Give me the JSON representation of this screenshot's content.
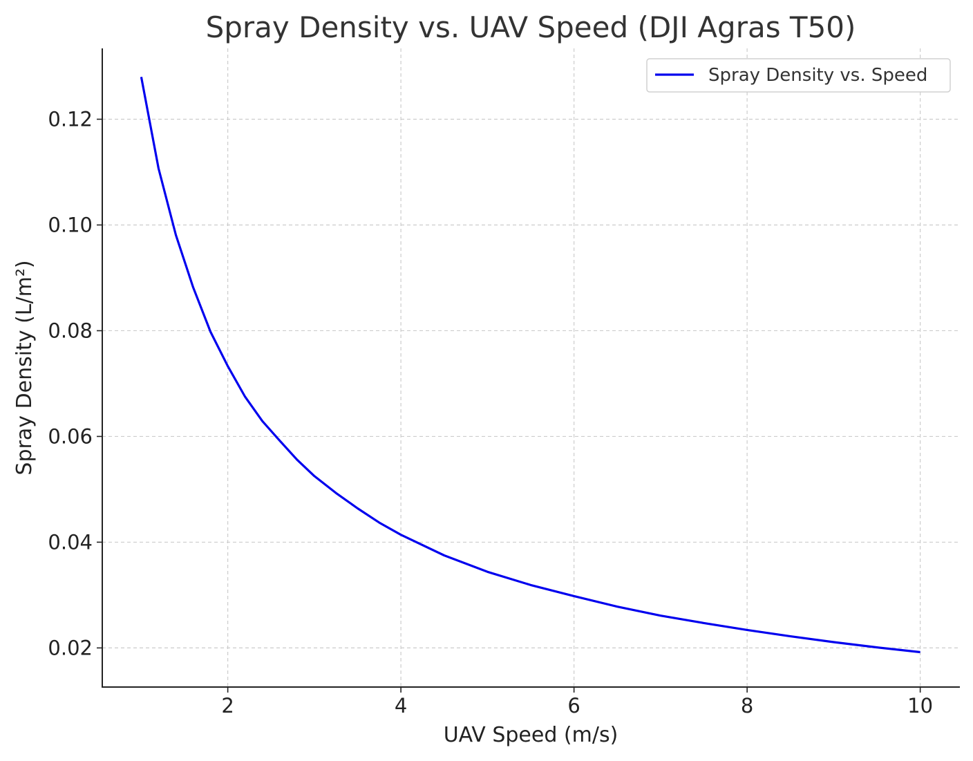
{
  "chart_data": {
    "type": "line",
    "title": "Spray Density vs. UAV Speed (DJI Agras T50)",
    "xlabel": "UAV Speed (m/s)",
    "ylabel": "Spray Density (L/m²)",
    "xlim": [
      0.55,
      10.45
    ],
    "ylim": [
      0.0126,
      0.1334
    ],
    "xticks": [
      2,
      4,
      6,
      8,
      10
    ],
    "xtick_labels": [
      "2",
      "4",
      "6",
      "8",
      "10"
    ],
    "yticks": [
      0.02,
      0.04,
      0.06,
      0.08,
      0.1,
      0.12
    ],
    "ytick_labels": [
      "0.02",
      "0.04",
      "0.06",
      "0.08",
      "0.10",
      "0.12"
    ],
    "grid": true,
    "legend_position": "top-right",
    "series": [
      {
        "name": "Spray Density vs. Speed",
        "color": "#0000ee",
        "x": [
          1.0,
          1.2,
          1.4,
          1.6,
          1.8,
          2.0,
          2.2,
          2.4,
          2.6,
          2.8,
          3.0,
          3.25,
          3.5,
          3.75,
          4.0,
          4.5,
          5.0,
          5.5,
          6.0,
          6.5,
          7.0,
          7.5,
          8.0,
          8.5,
          9.0,
          9.5,
          10.0
        ],
        "y": [
          0.128,
          0.1107,
          0.0981,
          0.0882,
          0.0798,
          0.0733,
          0.0675,
          0.0629,
          0.0592,
          0.0556,
          0.0525,
          0.0493,
          0.0464,
          0.0437,
          0.0414,
          0.0375,
          0.0344,
          0.0319,
          0.0298,
          0.0278,
          0.0261,
          0.0247,
          0.0234,
          0.0222,
          0.0211,
          0.0201,
          0.0192
        ]
      }
    ]
  }
}
